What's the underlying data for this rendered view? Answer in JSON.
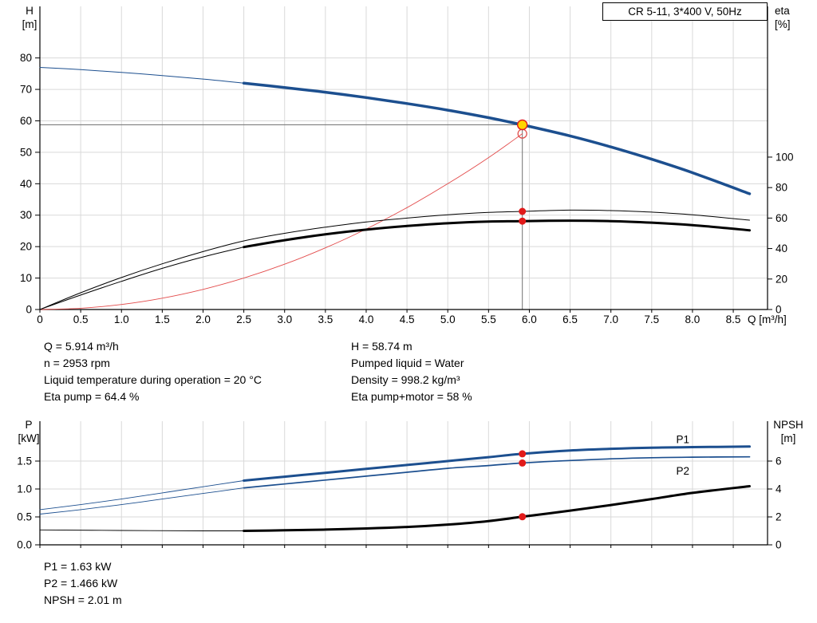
{
  "header": {
    "title_box": "CR 5-11, 3*400 V, 50Hz"
  },
  "top_chart": {
    "y_left": [
      "H",
      "[m]"
    ],
    "y_right": [
      "eta",
      "[%]"
    ]
  },
  "bottom_chart": {
    "y_left": [
      "P",
      "[kW]"
    ],
    "y_right": [
      "NPSH",
      "[m]"
    ]
  },
  "info": {
    "q": "Q = 5.914 m³/h",
    "n": "n = 2953 rpm",
    "temp": "Liquid temperature during operation = 20 °C",
    "eta_pump": "Eta pump = 64.4 %",
    "h": "H = 58.74 m",
    "liquid": "Pumped liquid = Water",
    "density": "Density = 998.2 kg/m³",
    "eta_pump_motor": "Eta pump+motor = 58 %"
  },
  "results": {
    "p1": "P1 = 1.63 kW",
    "p2": "P2 = 1.466 kW",
    "npsh": "NPSH = 2.01 m"
  },
  "colors": {
    "curve_blue": "#1c4f8f",
    "curve_black": "#000000",
    "parabola_red": "#e34c4c",
    "marker_red": "#e11a1a",
    "marker_ring": "#e1524f",
    "duty_yellow": "#ffd500",
    "grid": "#d9d9d9",
    "guide": "#7d7d7d",
    "axis": "#000000"
  },
  "chart_data": [
    {
      "type": "line",
      "name": "qh-eta",
      "title": "CR 5-11, 3*400 V, 50Hz",
      "x_axis": {
        "label": "Q [m³/h]",
        "min": 0,
        "max": 8.92,
        "ticks": [
          {
            "v": 0,
            "t": "0"
          },
          {
            "v": 0.5,
            "t": "0.5"
          },
          {
            "v": 1,
            "t": "1.0"
          },
          {
            "v": 1.5,
            "t": "1.5"
          },
          {
            "v": 2,
            "t": "2.0"
          },
          {
            "v": 2.5,
            "t": "2.5"
          },
          {
            "v": 3,
            "t": "3.0"
          },
          {
            "v": 3.5,
            "t": "3.5"
          },
          {
            "v": 4,
            "t": "4.0"
          },
          {
            "v": 4.5,
            "t": "4.5"
          },
          {
            "v": 5,
            "t": "5.0"
          },
          {
            "v": 5.5,
            "t": "5.5"
          },
          {
            "v": 6,
            "t": "6.0"
          },
          {
            "v": 6.5,
            "t": "6.5"
          },
          {
            "v": 7,
            "t": "7.0"
          },
          {
            "v": 7.5,
            "t": "7.5"
          },
          {
            "v": 8,
            "t": "8.0"
          },
          {
            "v": 8.5,
            "t": "8.5"
          }
        ]
      },
      "left_axis": {
        "label": "H [m]",
        "min": 0,
        "max": 96.4,
        "ticks": [
          {
            "v": 0,
            "t": "0"
          },
          {
            "v": 10,
            "t": "10"
          },
          {
            "v": 20,
            "t": "20"
          },
          {
            "v": 30,
            "t": "30"
          },
          {
            "v": 40,
            "t": "40"
          },
          {
            "v": 50,
            "t": "50"
          },
          {
            "v": 60,
            "t": "60"
          },
          {
            "v": 70,
            "t": "70"
          },
          {
            "v": 80,
            "t": "80"
          }
        ]
      },
      "right_axis": {
        "label": "eta [%]",
        "min": 0,
        "max": 198.9,
        "ticks": [
          {
            "v": 0,
            "t": "0"
          },
          {
            "v": 20,
            "t": "20"
          },
          {
            "v": 40,
            "t": "40"
          },
          {
            "v": 60,
            "t": "60"
          },
          {
            "v": 80,
            "t": "80"
          },
          {
            "v": 100,
            "t": "100"
          }
        ]
      },
      "series": [
        {
          "name": "head-lead",
          "axis": "left",
          "color": "#1c4f8f",
          "width": 1,
          "pts": [
            [
              0,
              77
            ],
            [
              0.5,
              76.3
            ],
            [
              1,
              75.4
            ],
            [
              1.5,
              74.4
            ],
            [
              2,
              73.3
            ],
            [
              2.5,
              72
            ]
          ]
        },
        {
          "name": "head",
          "axis": "left",
          "color": "#1c4f8f",
          "width": 3.5,
          "pts": [
            [
              2.5,
              72
            ],
            [
              3,
              70.6
            ],
            [
              3.5,
              69.1
            ],
            [
              4,
              67.4
            ],
            [
              4.5,
              65.5
            ],
            [
              5,
              63.4
            ],
            [
              5.5,
              61
            ],
            [
              5.914,
              58.74
            ],
            [
              6.5,
              55.2
            ],
            [
              7,
              51.7
            ],
            [
              7.5,
              47.8
            ],
            [
              8,
              43.5
            ],
            [
              8.7,
              36.8
            ]
          ]
        },
        {
          "name": "duty-parabola",
          "axis": "left",
          "color": "#e34c4c",
          "width": 0.9,
          "pts": [
            [
              0,
              0
            ],
            [
              0.5,
              0.4
            ],
            [
              1,
              1.6
            ],
            [
              1.5,
              3.6
            ],
            [
              2,
              6.4
            ],
            [
              2.5,
              10
            ],
            [
              3,
              14.4
            ],
            [
              3.5,
              19.6
            ],
            [
              4,
              25.6
            ],
            [
              4.5,
              32.4
            ],
            [
              5,
              40
            ],
            [
              5.5,
              48.3
            ],
            [
              5.914,
              55.9
            ]
          ]
        },
        {
          "name": "eta-pump",
          "axis": "right",
          "color": "#000000",
          "width": 1,
          "pts": [
            [
              0,
              0
            ],
            [
              0.5,
              11
            ],
            [
              1,
              21
            ],
            [
              1.5,
              30
            ],
            [
              2,
              38
            ],
            [
              2.5,
              45
            ],
            [
              3,
              50
            ],
            [
              3.5,
              54
            ],
            [
              4,
              57.4
            ],
            [
              4.5,
              60
            ],
            [
              5,
              62.2
            ],
            [
              5.5,
              63.7
            ],
            [
              5.914,
              64.4
            ],
            [
              6.5,
              65.2
            ],
            [
              7,
              64.9
            ],
            [
              7.5,
              63.9
            ],
            [
              8,
              62.2
            ],
            [
              8.7,
              58.6
            ]
          ]
        },
        {
          "name": "eta-pump-motor-lead",
          "axis": "right",
          "color": "#000000",
          "width": 1,
          "pts": [
            [
              0,
              0
            ],
            [
              0.5,
              9.5
            ],
            [
              1,
              18.5
            ],
            [
              1.5,
              27
            ],
            [
              2,
              34.5
            ],
            [
              2.5,
              41
            ]
          ]
        },
        {
          "name": "eta-pump-motor",
          "axis": "right",
          "color": "#000000",
          "width": 3,
          "pts": [
            [
              2.5,
              41
            ],
            [
              3,
              45.5
            ],
            [
              3.5,
              49.3
            ],
            [
              4,
              52.4
            ],
            [
              4.5,
              54.8
            ],
            [
              5,
              56.6
            ],
            [
              5.5,
              57.7
            ],
            [
              5.914,
              58
            ],
            [
              6.5,
              58.3
            ],
            [
              7,
              58
            ],
            [
              7.5,
              57
            ],
            [
              8,
              55.4
            ],
            [
              8.7,
              52
            ]
          ]
        }
      ],
      "guides": [
        {
          "type": "h",
          "axis": "left",
          "value": 58.74,
          "x1": 0,
          "x2": 5.914
        },
        {
          "type": "v",
          "axis": "left",
          "x": 5.914,
          "y1": 0,
          "y2": 58.74
        }
      ],
      "markers": [
        {
          "name": "specified-duty-marker",
          "shape": "ring",
          "axis": "left",
          "x": 5.914,
          "y": 55.9,
          "r": 5.5
        },
        {
          "name": "duty-point-marker",
          "shape": "duty",
          "axis": "left",
          "x": 5.914,
          "y": 58.74,
          "r": 6
        },
        {
          "name": "eta-pump-duty-dot",
          "shape": "dot",
          "axis": "right",
          "x": 5.914,
          "y": 64.4,
          "r": 4.5
        },
        {
          "name": "eta-pump-motor-duty-dot",
          "shape": "dot",
          "axis": "right",
          "x": 5.914,
          "y": 58,
          "r": 4.5
        }
      ],
      "annotations": []
    },
    {
      "type": "line",
      "name": "power-npsh",
      "title": "",
      "x_axis": {
        "label": "",
        "min": 0,
        "max": 8.92,
        "ticks": [
          {
            "v": 0,
            "t": ""
          },
          {
            "v": 0.5,
            "t": ""
          },
          {
            "v": 1,
            "t": ""
          },
          {
            "v": 1.5,
            "t": ""
          },
          {
            "v": 2,
            "t": ""
          },
          {
            "v": 2.5,
            "t": ""
          },
          {
            "v": 3,
            "t": ""
          },
          {
            "v": 3.5,
            "t": ""
          },
          {
            "v": 4,
            "t": ""
          },
          {
            "v": 4.5,
            "t": ""
          },
          {
            "v": 5,
            "t": ""
          },
          {
            "v": 5.5,
            "t": ""
          },
          {
            "v": 6,
            "t": ""
          },
          {
            "v": 6.5,
            "t": ""
          },
          {
            "v": 7,
            "t": ""
          },
          {
            "v": 7.5,
            "t": ""
          },
          {
            "v": 8,
            "t": ""
          },
          {
            "v": 8.5,
            "t": ""
          }
        ]
      },
      "left_axis": {
        "label": "P [kW]",
        "min": 0,
        "max": 2.214,
        "ticks": [
          {
            "v": 0,
            "t": "0.0"
          },
          {
            "v": 0.5,
            "t": "0.5"
          },
          {
            "v": 1,
            "t": "1.0"
          },
          {
            "v": 1.5,
            "t": "1.5"
          }
        ]
      },
      "right_axis": {
        "label": "NPSH [m]",
        "min": 0,
        "max": 8.857,
        "ticks": [
          {
            "v": 0,
            "t": "0"
          },
          {
            "v": 2,
            "t": "2"
          },
          {
            "v": 4,
            "t": "4"
          },
          {
            "v": 6,
            "t": "6"
          }
        ]
      },
      "series": [
        {
          "name": "p1-lead",
          "axis": "left",
          "color": "#1c4f8f",
          "width": 0.9,
          "pts": [
            [
              0,
              0.63
            ],
            [
              0.5,
              0.72
            ],
            [
              1,
              0.82
            ],
            [
              1.5,
              0.93
            ],
            [
              2,
              1.04
            ],
            [
              2.5,
              1.15
            ]
          ]
        },
        {
          "name": "p1",
          "axis": "left",
          "color": "#1c4f8f",
          "width": 3,
          "pts": [
            [
              2.5,
              1.15
            ],
            [
              3,
              1.22
            ],
            [
              3.5,
              1.29
            ],
            [
              4,
              1.36
            ],
            [
              4.5,
              1.43
            ],
            [
              5,
              1.5
            ],
            [
              5.5,
              1.57
            ],
            [
              5.914,
              1.63
            ],
            [
              6.5,
              1.69
            ],
            [
              7,
              1.72
            ],
            [
              7.5,
              1.74
            ],
            [
              8,
              1.75
            ],
            [
              8.7,
              1.76
            ]
          ]
        },
        {
          "name": "p2-lead",
          "axis": "left",
          "color": "#1c4f8f",
          "width": 0.9,
          "pts": [
            [
              0,
              0.55
            ],
            [
              0.5,
              0.63
            ],
            [
              1,
              0.72
            ],
            [
              1.5,
              0.82
            ],
            [
              2,
              0.92
            ],
            [
              2.5,
              1.02
            ]
          ]
        },
        {
          "name": "p2",
          "axis": "left",
          "color": "#1c4f8f",
          "width": 1.7,
          "pts": [
            [
              2.5,
              1.02
            ],
            [
              3,
              1.09
            ],
            [
              3.5,
              1.16
            ],
            [
              4,
              1.23
            ],
            [
              4.5,
              1.3
            ],
            [
              5,
              1.37
            ],
            [
              5.5,
              1.42
            ],
            [
              5.914,
              1.466
            ],
            [
              6.5,
              1.51
            ],
            [
              7,
              1.54
            ],
            [
              7.5,
              1.56
            ],
            [
              8,
              1.57
            ],
            [
              8.7,
              1.575
            ]
          ]
        },
        {
          "name": "npsh-lead",
          "axis": "right",
          "color": "#000000",
          "width": 0.9,
          "pts": [
            [
              0,
              1.07
            ],
            [
              1,
              1.03
            ],
            [
              2,
              1.0
            ],
            [
              2.5,
              1.0
            ]
          ]
        },
        {
          "name": "npsh",
          "axis": "right",
          "color": "#000000",
          "width": 3,
          "pts": [
            [
              2.5,
              1.0
            ],
            [
              3,
              1.04
            ],
            [
              3.5,
              1.09
            ],
            [
              4,
              1.17
            ],
            [
              4.5,
              1.28
            ],
            [
              5,
              1.45
            ],
            [
              5.5,
              1.7
            ],
            [
              5.914,
              2.01
            ],
            [
              6.5,
              2.45
            ],
            [
              7,
              2.85
            ],
            [
              7.5,
              3.28
            ],
            [
              8,
              3.72
            ],
            [
              8.7,
              4.2
            ]
          ]
        }
      ],
      "guides": [],
      "markers": [
        {
          "name": "p1-duty-dot",
          "shape": "dot",
          "axis": "left",
          "x": 5.914,
          "y": 1.63,
          "r": 4.5
        },
        {
          "name": "p2-duty-dot",
          "shape": "dot",
          "axis": "left",
          "x": 5.914,
          "y": 1.466,
          "r": 4.5
        },
        {
          "name": "npsh-duty-dot",
          "shape": "dot",
          "axis": "right",
          "x": 5.914,
          "y": 2.01,
          "r": 4.5
        }
      ],
      "annotations": [
        {
          "name": "p1-series-label",
          "text": "P1",
          "axis": "left",
          "x": 7.8,
          "y": 1.82,
          "color": "#1c4f8f"
        },
        {
          "name": "p2-series-label",
          "text": "P2",
          "axis": "left",
          "x": 7.8,
          "y": 1.26,
          "color": "#1c4f8f"
        }
      ]
    }
  ]
}
